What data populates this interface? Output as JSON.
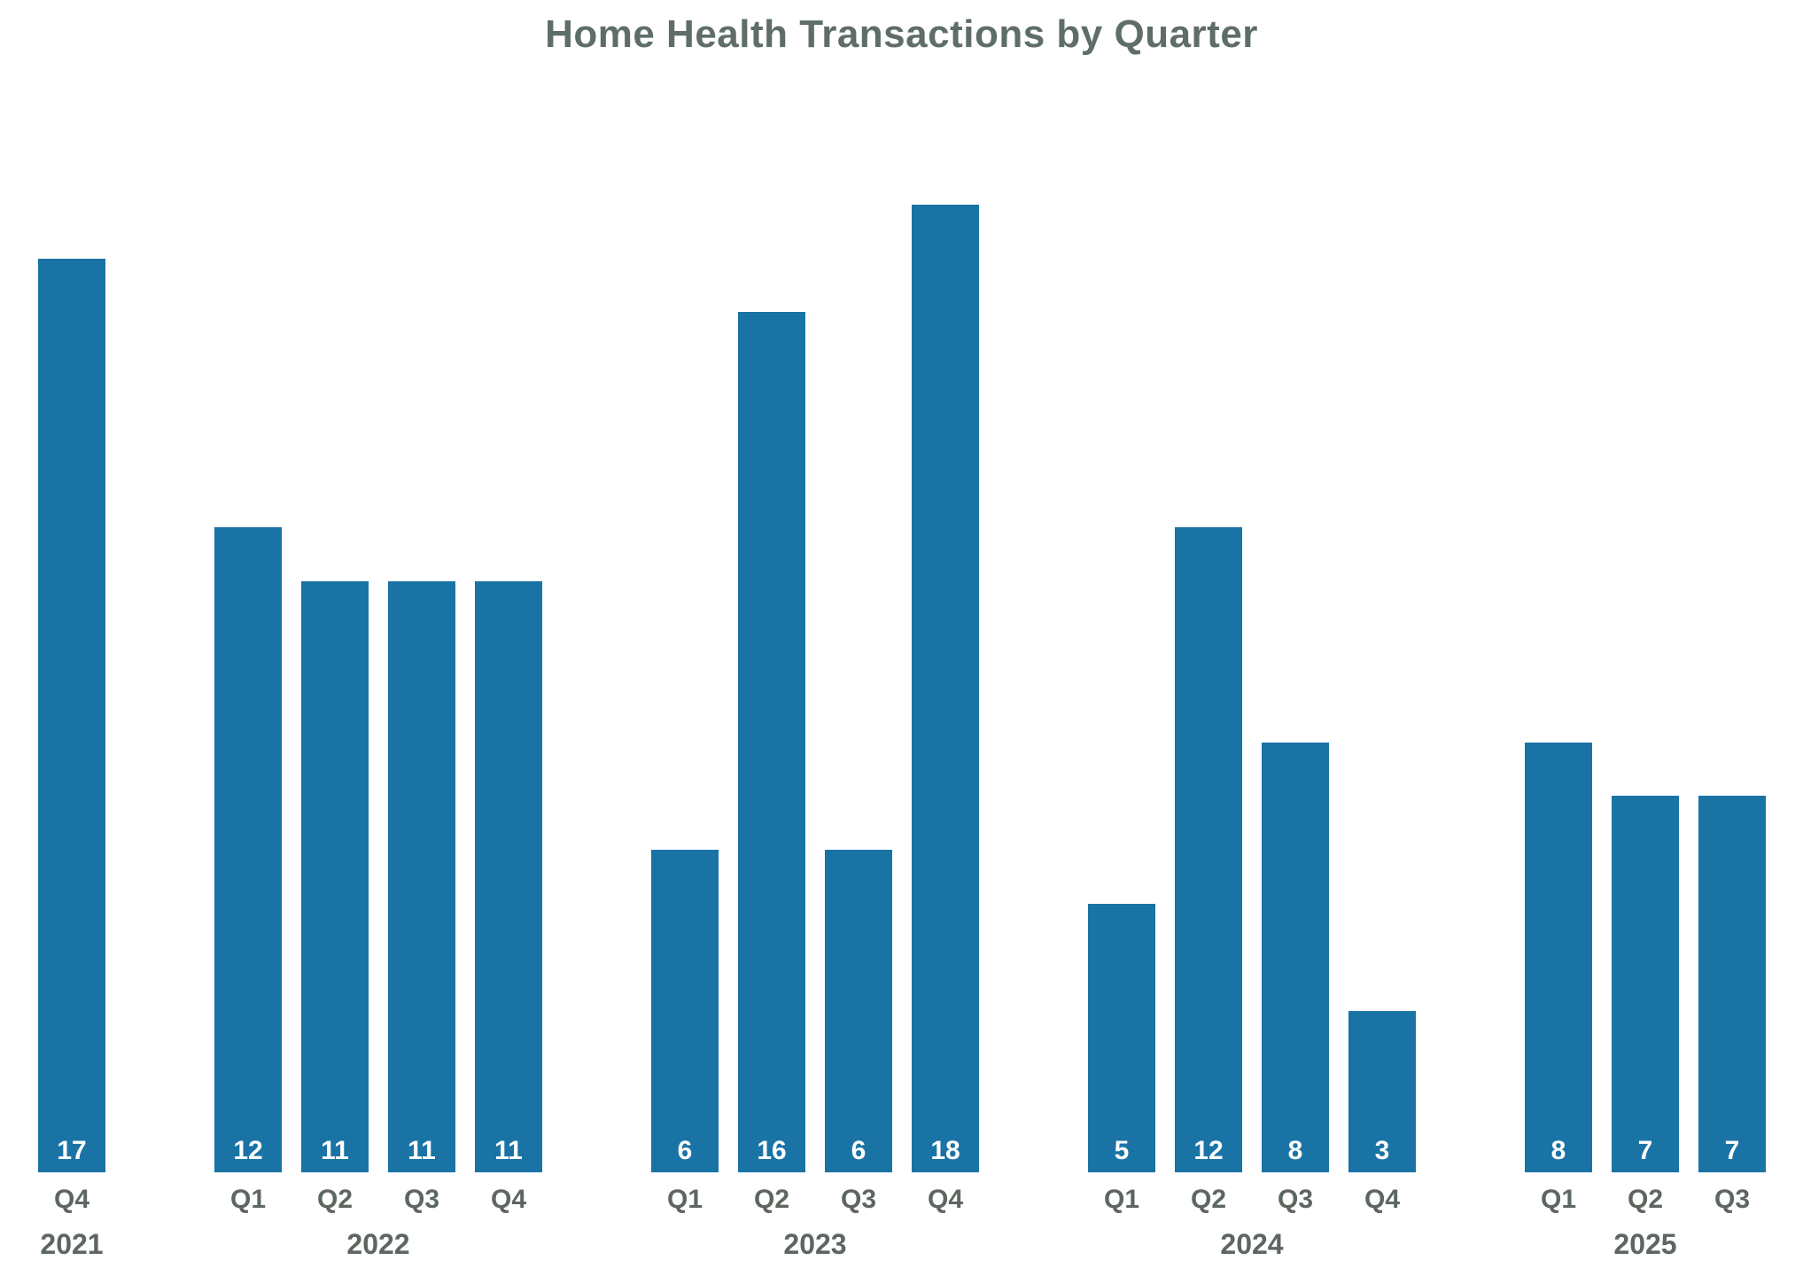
{
  "title": "Home Health Transactions by Quarter",
  "colors": {
    "bar": "#1a73a5",
    "title_text": "#5e6e66",
    "tick_text": "#5d665f",
    "value_text": "#ffffff",
    "background": "#ffffff"
  },
  "chart_data": {
    "type": "bar",
    "title": "Home Health Transactions by Quarter",
    "xlabel": "",
    "ylabel": "",
    "ymax": 18,
    "grid": false,
    "legend": false,
    "value_labels": "inside-bottom",
    "groups": [
      {
        "year": "2021",
        "quarters": [
          "Q4"
        ],
        "values": [
          17
        ]
      },
      {
        "year": "2022",
        "quarters": [
          "Q1",
          "Q2",
          "Q3",
          "Q4"
        ],
        "values": [
          12,
          11,
          11,
          11
        ]
      },
      {
        "year": "2023",
        "quarters": [
          "Q1",
          "Q2",
          "Q3",
          "Q4"
        ],
        "values": [
          6,
          16,
          6,
          18
        ]
      },
      {
        "year": "2024",
        "quarters": [
          "Q1",
          "Q2",
          "Q3",
          "Q4"
        ],
        "values": [
          5,
          12,
          8,
          3
        ]
      },
      {
        "year": "2025",
        "quarters": [
          "Q1",
          "Q2",
          "Q3"
        ],
        "values": [
          8,
          7,
          7
        ]
      }
    ],
    "categories": [
      "Q4 2021",
      "Q1 2022",
      "Q2 2022",
      "Q3 2022",
      "Q4 2022",
      "Q1 2023",
      "Q2 2023",
      "Q3 2023",
      "Q4 2023",
      "Q1 2024",
      "Q2 2024",
      "Q3 2024",
      "Q4 2024",
      "Q1 2025",
      "Q2 2025",
      "Q3 2025"
    ],
    "values": [
      17,
      12,
      11,
      11,
      11,
      6,
      16,
      6,
      18,
      5,
      12,
      8,
      3,
      8,
      7,
      7
    ]
  }
}
